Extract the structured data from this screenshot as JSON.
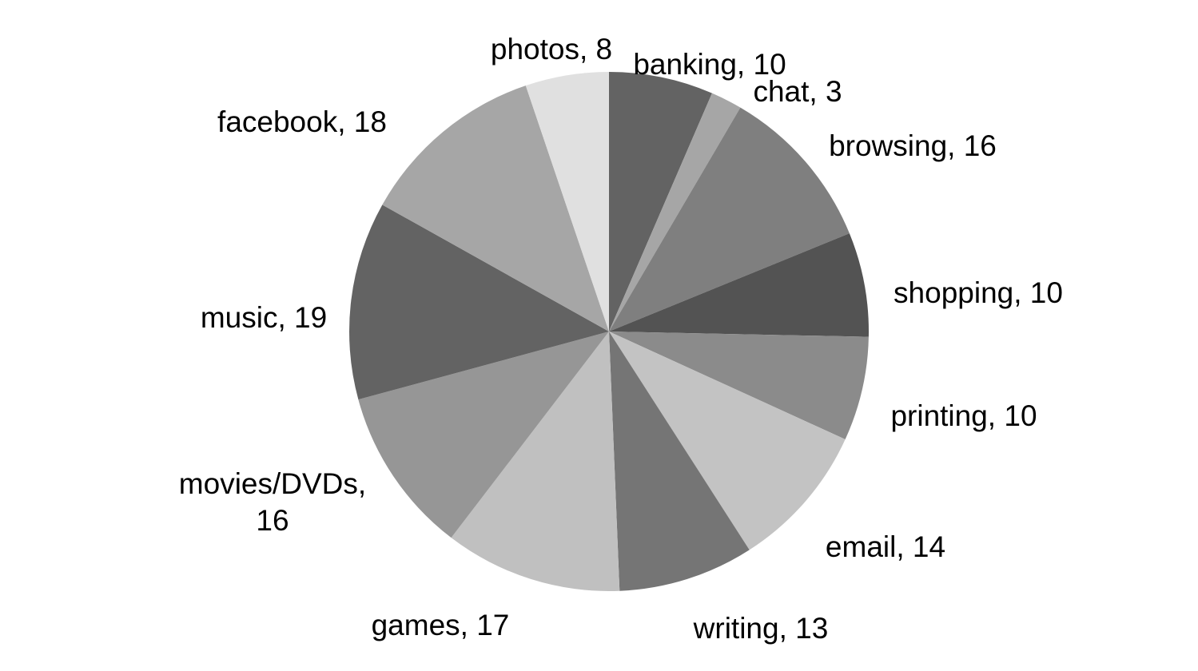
{
  "chart_data": {
    "type": "pie",
    "title": "",
    "start": "12 o'clock",
    "direction": "clockwise",
    "legend": "none",
    "slices": [
      {
        "label": "banking",
        "value": 10,
        "color": "#636363",
        "label_text": [
          "banking, 10"
        ]
      },
      {
        "label": "chat",
        "value": 3,
        "color": "#a6a6a6",
        "label_text": [
          "chat, 3"
        ]
      },
      {
        "label": "browsing",
        "value": 16,
        "color": "#7f7f7f",
        "label_text": [
          "browsing, 16"
        ]
      },
      {
        "label": "shopping",
        "value": 10,
        "color": "#535353",
        "label_text": [
          "shopping, 10"
        ]
      },
      {
        "label": "printing",
        "value": 10,
        "color": "#8b8b8b",
        "label_text": [
          "printing, 10"
        ]
      },
      {
        "label": "email",
        "value": 14,
        "color": "#c3c3c3",
        "label_text": [
          "email, 14"
        ]
      },
      {
        "label": "writing",
        "value": 13,
        "color": "#757575",
        "label_text": [
          "writing, 13"
        ]
      },
      {
        "label": "games",
        "value": 17,
        "color": "#c0c0c0",
        "label_text": [
          "games, 17"
        ]
      },
      {
        "label": "movies/DVDs",
        "value": 16,
        "color": "#969696",
        "label_text": [
          "movies/DVDs,",
          "16"
        ]
      },
      {
        "label": "music",
        "value": 19,
        "color": "#636363",
        "label_text": [
          "music, 19"
        ]
      },
      {
        "label": "facebook",
        "value": 18,
        "color": "#a6a6a6",
        "label_text": [
          "facebook, 18"
        ]
      },
      {
        "label": "photos",
        "value": 8,
        "color": "#e0e0e0",
        "label_text": [
          "photos, 8"
        ]
      }
    ]
  }
}
